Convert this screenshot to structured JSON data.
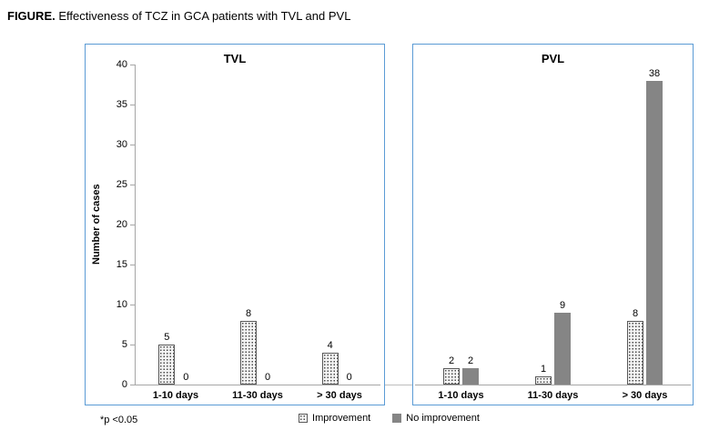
{
  "figure": {
    "title_prefix": "FIGURE.",
    "title_text": "Effectiveness of TCZ in GCA patients with TVL and PVL",
    "footnote": "*p <0.05"
  },
  "chart_data": {
    "type": "bar",
    "ylabel": "Number of cases",
    "ylim": [
      0,
      40
    ],
    "ytick_step": 5,
    "grid": false,
    "legend_position": "bottom-center",
    "panels": [
      {
        "title": "TVL",
        "categories": [
          "1-10 days",
          "11-30 days",
          "> 30 days"
        ],
        "series": [
          {
            "name": "Improvement",
            "values": [
              5,
              8,
              4
            ]
          },
          {
            "name": "No improvement",
            "values": [
              0,
              0,
              0
            ]
          }
        ]
      },
      {
        "title": "PVL",
        "categories": [
          "1-10 days",
          "11-30 days",
          "> 30 days"
        ],
        "series": [
          {
            "name": "Improvement",
            "values": [
              2,
              1,
              8
            ]
          },
          {
            "name": "No improvement",
            "values": [
              2,
              9,
              38
            ]
          }
        ]
      }
    ],
    "legend": [
      {
        "label": "Improvement",
        "style": "dotted-pattern"
      },
      {
        "label": "No improvement",
        "style": "solid-gray"
      }
    ],
    "colors": {
      "improvement_fill": "#f5f5f5",
      "improvement_dot": "#4a4a4a",
      "no_improvement": "#858585",
      "panel_border": "#5b9bd5",
      "axis": "#a6a6a6"
    }
  }
}
